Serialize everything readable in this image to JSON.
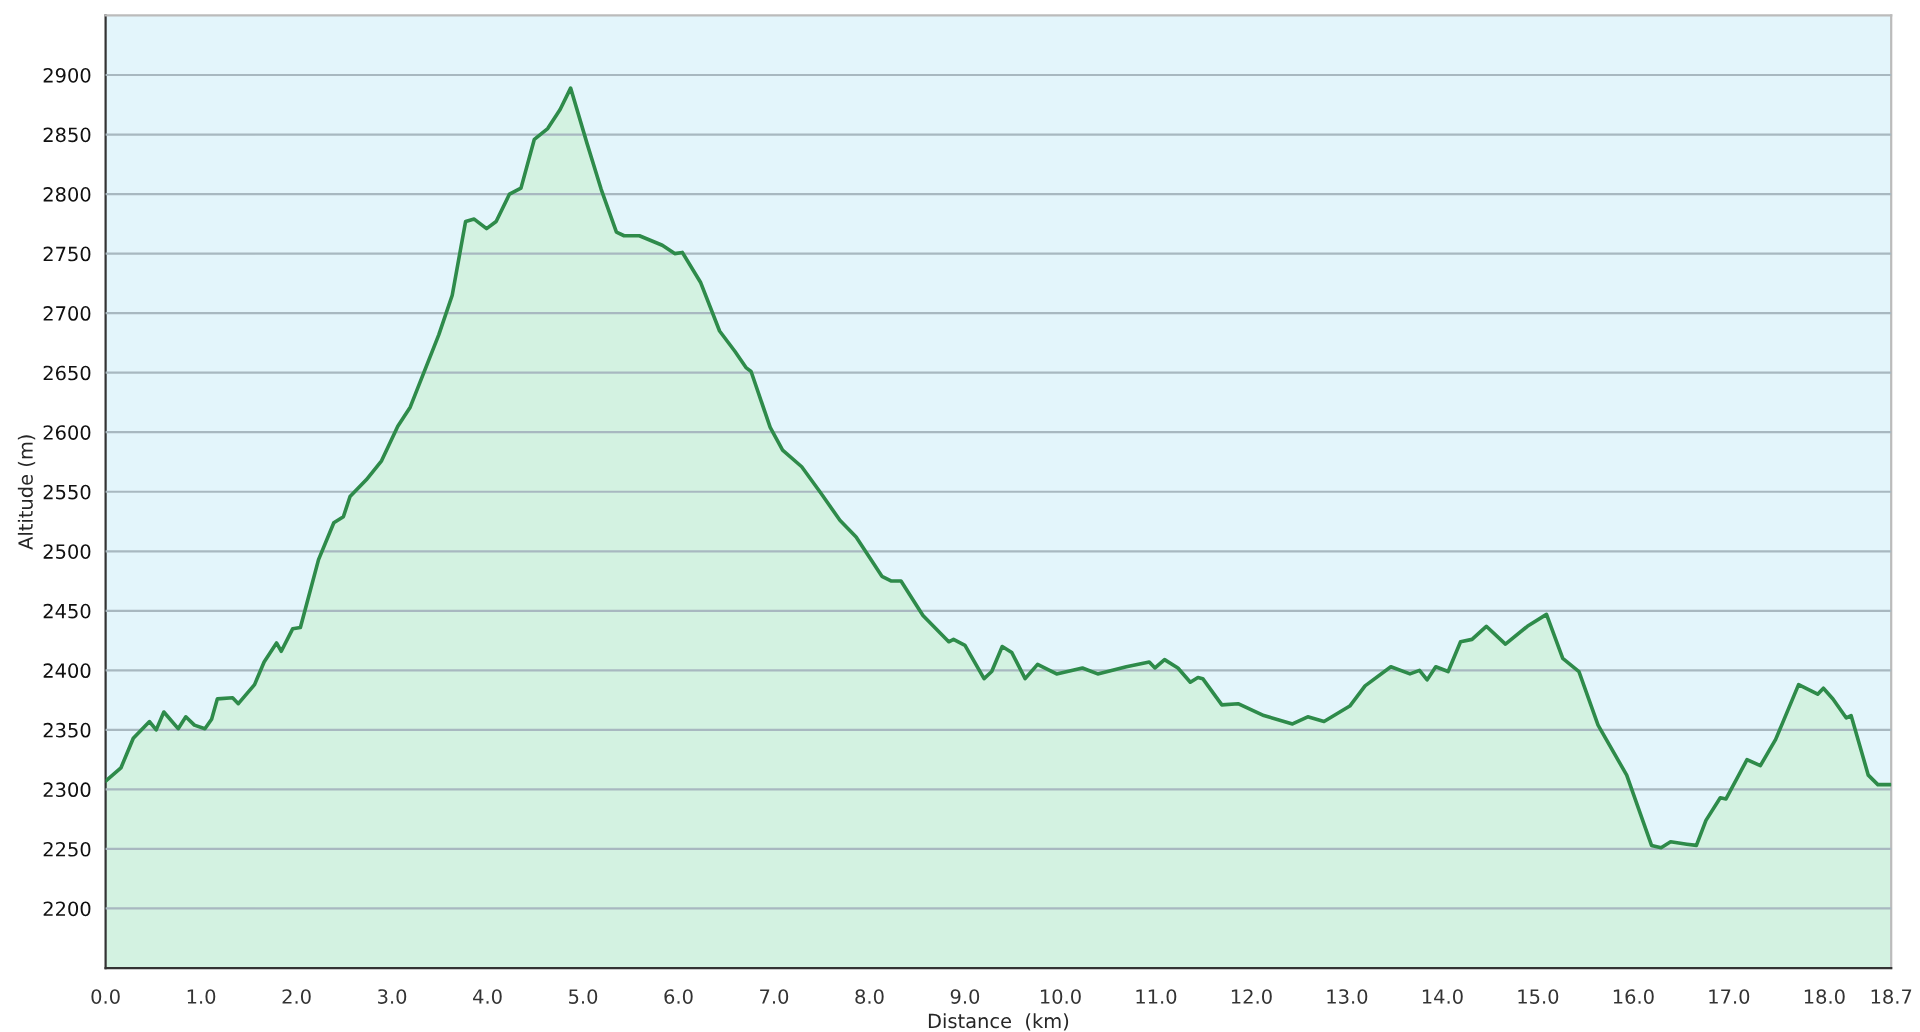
{
  "chart_data": {
    "type": "area",
    "xlabel": "Distance  (km)",
    "ylabel": "Altitude (m)",
    "xlim": [
      0,
      18.7
    ],
    "ylim": [
      2150,
      2950
    ],
    "xticks": [
      {
        "value": 0,
        "label": "0.0"
      },
      {
        "value": 1,
        "label": "1.0"
      },
      {
        "value": 2,
        "label": "2.0"
      },
      {
        "value": 3,
        "label": "3.0"
      },
      {
        "value": 4,
        "label": "4.0"
      },
      {
        "value": 5,
        "label": "5.0"
      },
      {
        "value": 6,
        "label": "6.0"
      },
      {
        "value": 7,
        "label": "7.0"
      },
      {
        "value": 8,
        "label": "8.0"
      },
      {
        "value": 9,
        "label": "9.0"
      },
      {
        "value": 10,
        "label": "10.0"
      },
      {
        "value": 11,
        "label": "11.0"
      },
      {
        "value": 12,
        "label": "12.0"
      },
      {
        "value": 13,
        "label": "13.0"
      },
      {
        "value": 14,
        "label": "14.0"
      },
      {
        "value": 15,
        "label": "15.0"
      },
      {
        "value": 16,
        "label": "16.0"
      },
      {
        "value": 17,
        "label": "17.0"
      },
      {
        "value": 18,
        "label": "18.0"
      },
      {
        "value": 18.7,
        "label": "18.7"
      }
    ],
    "yticks": [
      2200,
      2250,
      2300,
      2350,
      2400,
      2450,
      2500,
      2550,
      2600,
      2650,
      2700,
      2750,
      2800,
      2850,
      2900
    ],
    "grid": "y",
    "legend": false,
    "series": [
      {
        "color": "#2e8b4a",
        "x": [
          0,
          0.16,
          0.29,
          0.46,
          0.53,
          0.61,
          0.76,
          0.84,
          0.93,
          1.04,
          1.11,
          1.17,
          1.33,
          1.39,
          1.56,
          1.66,
          1.79,
          1.84,
          1.96,
          2.04,
          2.23,
          2.39,
          2.49,
          2.56,
          2.73,
          2.89,
          3.06,
          3.19,
          3.49,
          3.63,
          3.77,
          3.86,
          3.99,
          4.09,
          4.23,
          4.35,
          4.49,
          4.63,
          4.76,
          4.87,
          5.04,
          5.19,
          5.35,
          5.43,
          5.59,
          5.83,
          5.96,
          6.04,
          6.23,
          6.43,
          6.59,
          6.71,
          6.76,
          6.96,
          7.09,
          7.29,
          7.49,
          7.69,
          7.86,
          8.13,
          8.23,
          8.33,
          8.56,
          8.83,
          8.88,
          9.0,
          9.2,
          9.28,
          9.39,
          9.49,
          9.63,
          9.76,
          9.96,
          10.23,
          10.39,
          10.69,
          10.93,
          10.99,
          11.09,
          11.23,
          11.36,
          11.44,
          11.49,
          11.69,
          11.86,
          12.13,
          12.43,
          12.59,
          12.76,
          13.03,
          13.19,
          13.46,
          13.66,
          13.76,
          13.84,
          13.93,
          14.06,
          14.19,
          14.31,
          14.46,
          14.66,
          14.89,
          15.09,
          15.26,
          15.43,
          15.63,
          15.93,
          16.19,
          16.29,
          16.39,
          16.56,
          16.66,
          16.76,
          16.91,
          16.97,
          17.19,
          17.33,
          17.49,
          17.73,
          17.93,
          17.99,
          18.09,
          18.23,
          18.28,
          18.46,
          18.56,
          18.69
        ],
        "values": [
          2307,
          2318,
          2343,
          2357,
          2350,
          2365,
          2351,
          2361,
          2354,
          2351,
          2359,
          2376,
          2377,
          2372,
          2388,
          2407,
          2423,
          2416,
          2435,
          2436,
          2493,
          2524,
          2529,
          2546,
          2560,
          2576,
          2605,
          2621,
          2682,
          2715,
          2777,
          2779,
          2771,
          2777,
          2800,
          2805,
          2846,
          2855,
          2871,
          2889,
          2843,
          2804,
          2768,
          2765,
          2765,
          2757,
          2750,
          2751,
          2726,
          2685,
          2668,
          2654,
          2651,
          2604,
          2585,
          2571,
          2549,
          2526,
          2512,
          2479,
          2475,
          2475,
          2446,
          2424,
          2426,
          2421,
          2393,
          2399,
          2420,
          2415,
          2393,
          2405,
          2397,
          2402,
          2397,
          2403,
          2407,
          2402,
          2409,
          2402,
          2390,
          2394,
          2393,
          2371,
          2372,
          2362,
          2355,
          2361,
          2357,
          2370,
          2387,
          2403,
          2397,
          2400,
          2392,
          2403,
          2399,
          2424,
          2426,
          2437,
          2422,
          2437,
          2447,
          2410,
          2399,
          2354,
          2312,
          2253,
          2251,
          2256,
          2254,
          2253,
          2274,
          2293,
          2292,
          2325,
          2320,
          2342,
          2388,
          2380,
          2385,
          2376,
          2360,
          2362,
          2312,
          2304,
          2304
        ]
      }
    ]
  }
}
